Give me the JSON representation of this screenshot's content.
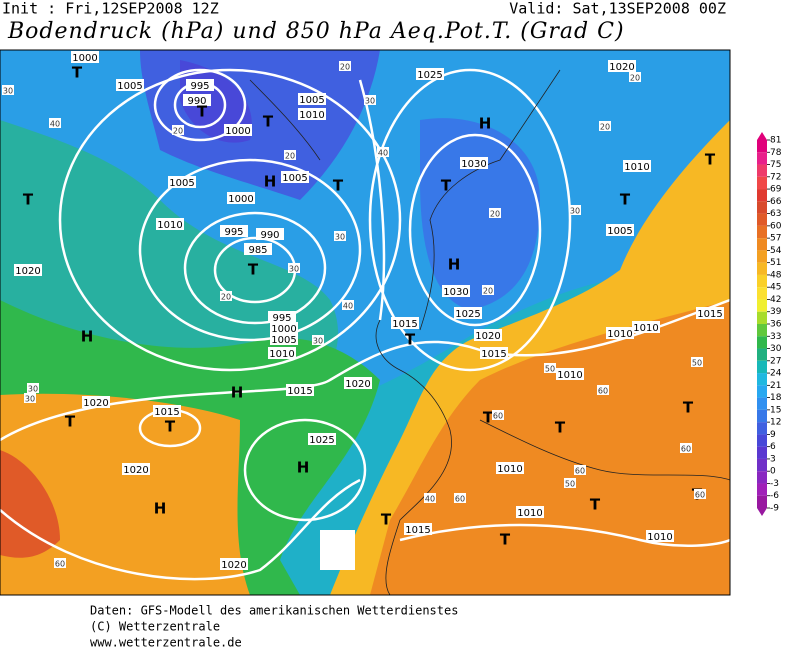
{
  "header": {
    "init": "Init : Fri,12SEP2008 12Z",
    "valid": "Valid: Sat,13SEP2008 00Z",
    "title": "Bodendruck (hPa) und 850 hPa Aeq.Pot.T. (Grad C)"
  },
  "map": {
    "isobar_labels": [
      "1000",
      "1005",
      "995",
      "990",
      "1000",
      "1005",
      "1010",
      "1005",
      "1005",
      "1000",
      "1010",
      "995",
      "990",
      "985",
      "1020",
      "995",
      "1000",
      "1005",
      "1010",
      "1015",
      "1020",
      "1020",
      "1015",
      "1020",
      "1025",
      "1020",
      "1025",
      "1020",
      "1030",
      "1010",
      "1005",
      "1030",
      "1025",
      "1020",
      "1015",
      "1015",
      "1010",
      "1010",
      "1010",
      "1015",
      "1010",
      "1010",
      "1015",
      "1010"
    ],
    "pressure_centers": [
      "T",
      "T",
      "T",
      "H",
      "T",
      "T",
      "H",
      "T",
      "T",
      "T",
      "H",
      "T",
      "H",
      "T",
      "H",
      "T",
      "T",
      "H",
      "T",
      "T",
      "T",
      "T",
      "T",
      "T",
      "T",
      "H"
    ],
    "temperature_labels": [
      "20",
      "20",
      "20",
      "30",
      "40",
      "30",
      "20",
      "20",
      "30",
      "20",
      "30",
      "40",
      "30",
      "30",
      "40",
      "30",
      "20",
      "60",
      "50",
      "60",
      "60",
      "50",
      "60",
      "60",
      "50",
      "40",
      "60",
      "60",
      "20",
      "30"
    ]
  },
  "colorbar": {
    "ticks": [
      81,
      78,
      75,
      72,
      69,
      66,
      63,
      60,
      57,
      54,
      51,
      48,
      45,
      42,
      39,
      36,
      33,
      30,
      27,
      24,
      21,
      18,
      15,
      12,
      9,
      6,
      3,
      0,
      -3,
      -6,
      -9
    ],
    "colors": [
      "#e0007a",
      "#e8208a",
      "#ee3b6a",
      "#f04848",
      "#e03a30",
      "#d84a2c",
      "#e05a28",
      "#e87024",
      "#ef8a22",
      "#f3a022",
      "#f7b824",
      "#fad028",
      "#fbe030",
      "#f0ef30",
      "#a8dc2c",
      "#60c83c",
      "#30b84c",
      "#20b080",
      "#18b8b8",
      "#20b8e0",
      "#28a8f0",
      "#3090f0",
      "#3878e8",
      "#4060e0",
      "#4848d8",
      "#5a38d0",
      "#7030c8",
      "#8828c0",
      "#a020b8",
      "#9818a0"
    ]
  },
  "footer": [
    "Daten: GFS-Modell des amerikanischen Wetterdienstes",
    "(C) Wetterzentrale",
    "www.wetterzentrale.de"
  ]
}
